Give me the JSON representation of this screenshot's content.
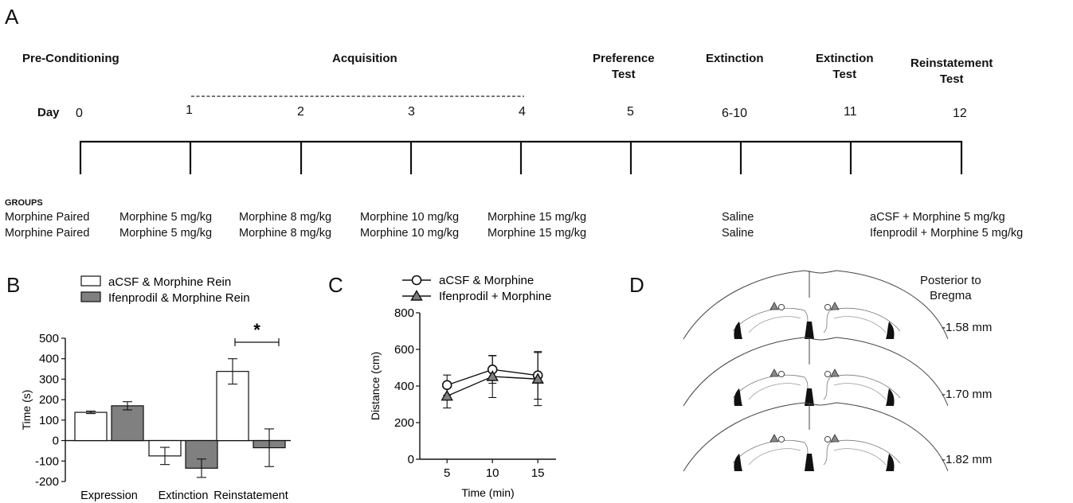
{
  "panels": {
    "a": "A",
    "b": "B",
    "c": "C",
    "d": "D"
  },
  "timeline": {
    "day_label": "Day",
    "phases": [
      {
        "label": "Pre-Conditioning"
      },
      {
        "label": "Acquisition"
      },
      {
        "label": "Preference\nTest"
      },
      {
        "label": "Extinction"
      },
      {
        "label": "Extinction\nTest"
      },
      {
        "label": "Reinstatement\nTest"
      }
    ],
    "days": [
      "0",
      "1",
      "2",
      "3",
      "4",
      "5",
      "6-10",
      "11",
      "12"
    ]
  },
  "groups": {
    "header": "GROUPS",
    "rows": [
      [
        "Morphine Paired",
        "Morphine 5 mg/kg",
        "Morphine 8 mg/kg",
        "Morphine 10 mg/kg",
        "Morphine 15 mg/kg",
        "Saline",
        "aCSF + Morphine 5 mg/kg"
      ],
      [
        "Morphine Paired",
        "Morphine 5 mg/kg",
        "Morphine 8 mg/kg",
        "Morphine 10 mg/kg",
        "Morphine 15 mg/kg",
        "Saline",
        "Ifenprodil + Morphine 5 mg/kg"
      ]
    ]
  },
  "chart_data": [
    {
      "type": "bar",
      "panel": "B",
      "categories": [
        "Expression",
        "Extinction",
        "Reinstatement"
      ],
      "ylabel": "Time (s)",
      "ylim": [
        -200,
        500
      ],
      "yticks": [
        -200,
        -100,
        0,
        100,
        200,
        300,
        400,
        500
      ],
      "legend_position": "top",
      "series": [
        {
          "name": "aCSF & Morphine Rein",
          "color": "#ffffff",
          "values": [
            138,
            -75,
            338
          ],
          "errors": [
            6,
            42,
            62
          ]
        },
        {
          "name": "Ifenprodil & Morphine Rein",
          "color": "#808080",
          "values": [
            170,
            -135,
            -35
          ],
          "errors": [
            20,
            45,
            92
          ]
        }
      ],
      "annotation": "*"
    },
    {
      "type": "line",
      "panel": "C",
      "xlabel": "Time (min)",
      "ylabel": "Distance (cm)",
      "x": [
        5,
        10,
        15
      ],
      "xlim": [
        2,
        17
      ],
      "ylim": [
        0,
        800
      ],
      "yticks": [
        0,
        200,
        400,
        600,
        800
      ],
      "legend_position": "top",
      "series": [
        {
          "name": "aCSF & Morphine",
          "marker": "circle",
          "values": [
            405,
            490,
            458
          ],
          "errors": [
            55,
            75,
            130
          ]
        },
        {
          "name": "Ifenprodil + Morphine",
          "marker": "triangle",
          "values": [
            345,
            452,
            438
          ],
          "errors": [
            65,
            115,
            145
          ]
        }
      ]
    }
  ],
  "panel_d": {
    "header": "Posterior to\nBregma",
    "levels": [
      "-1.58 mm",
      "-1.70 mm",
      "-1.82 mm"
    ],
    "icon": "coronal-brain-section-icon"
  }
}
